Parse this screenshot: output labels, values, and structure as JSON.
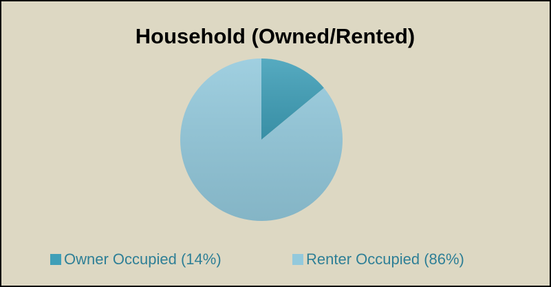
{
  "chart_data": {
    "type": "pie",
    "title": "Household (Owned/Rented)",
    "categories": [
      "Owner Occupied (14%)",
      "Renter Occupied (86%)"
    ],
    "values": [
      14,
      86
    ],
    "colors": [
      "#3f9fb8",
      "#93c9dc"
    ],
    "legend": "bottom"
  }
}
